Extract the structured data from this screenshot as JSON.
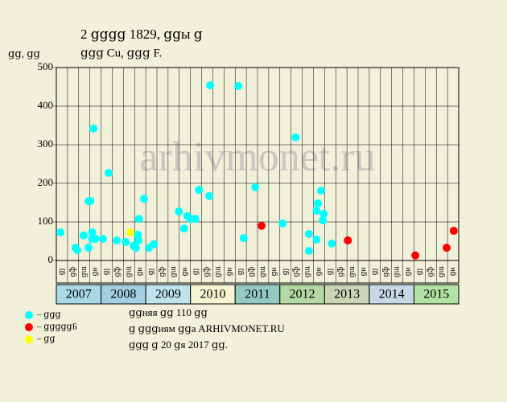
{
  "chart_data": {
    "type": "scatter",
    "title": "2 ցցցց 1829, ցցы ց",
    "subtitle": "ցցց Cu, ցցց F.",
    "y_label": "ցց, ցց",
    "watermark": "arhivmonet.ru",
    "notes": [
      "ցցняя ցց 110 ցց",
      "ց ցցցиям ցցa ARHIVMONET.RU",
      "ցցց ց 20 ցя 2017 ցց."
    ],
    "xlim": [
      2007,
      2016
    ],
    "ylim": [
      0,
      500
    ],
    "yticks": [
      0,
      100,
      200,
      300,
      400,
      500
    ],
    "grid": true,
    "years": [
      "2007",
      "2008",
      "2009",
      "2010",
      "2011",
      "2012",
      "2013",
      "2014",
      "2015"
    ],
    "year_colors": [
      "#a9d9e6",
      "#a4cfe3",
      "#bfe3ef",
      "#f6f4d2",
      "#93cbc2",
      "#b5d9a3",
      "#c9d6b6",
      "#c7d9e6",
      "#b2e2a4"
    ],
    "quarters": [
      "ցյ",
      "ցֆ",
      "ցա",
      "ցи",
      "ցյ",
      "ցֆ",
      "ցա",
      "ցи",
      "ցյ",
      "ցֆ",
      "ցա",
      "ցи",
      "ցյ",
      "ցֆ",
      "ցա",
      "ցи",
      "ցյ",
      "ցֆ",
      "ցա",
      "ցи",
      "ցյ",
      "ցֆ",
      "ցա",
      "ցи",
      "ցյ",
      "ցֆ",
      "ցա",
      "ցи",
      "ցյ",
      "ցֆ",
      "ցա",
      "ցи",
      "ցյ",
      "ցֆ",
      "ցա",
      "ցи"
    ],
    "series": [
      {
        "name": "– ցցց",
        "color": "#00ffff",
        "x": [
          2007.09,
          2007.43,
          2007.47,
          2007.61,
          2007.72,
          2007.76,
          2007.72,
          2007.8,
          2007.8,
          2007.87,
          2007.83,
          2008.04,
          2008.17,
          2008.35,
          2008.55,
          2008.73,
          2008.78,
          2008.82,
          2008.84,
          2008.85,
          2008.96,
          2009.07,
          2009.18,
          2009.74,
          2009.86,
          2009.93,
          2010.0,
          2010.11,
          2010.19,
          2010.42,
          2010.44,
          2011.07,
          2011.19,
          2011.45,
          2012.06,
          2012.35,
          2012.65,
          2012.65,
          2012.82,
          2012.82,
          2012.85,
          2012.92,
          2012.98,
          2012.96,
          2013.16
        ],
        "values": [
          73,
          33,
          27,
          65,
          154,
          154,
          33,
          73,
          56,
          56,
          342,
          56,
          227,
          52,
          48,
          38,
          33,
          67,
          52,
          108,
          160,
          33,
          42,
          127,
          83,
          115,
          108,
          108,
          183,
          167,
          454,
          452,
          58,
          190,
          96,
          319,
          69,
          25,
          54,
          129,
          148,
          181,
          121,
          104,
          44
        ]
      },
      {
        "name": "– ցցցցցБ",
        "color": "#ff0000",
        "x": [
          2011.59,
          2013.52,
          2015.03,
          2015.73,
          2015.89
        ],
        "values": [
          90,
          52,
          13,
          33,
          77
        ]
      },
      {
        "name": "– ցց",
        "color": "#ffff00",
        "x": [
          2008.66
        ],
        "values": [
          73
        ]
      }
    ]
  }
}
